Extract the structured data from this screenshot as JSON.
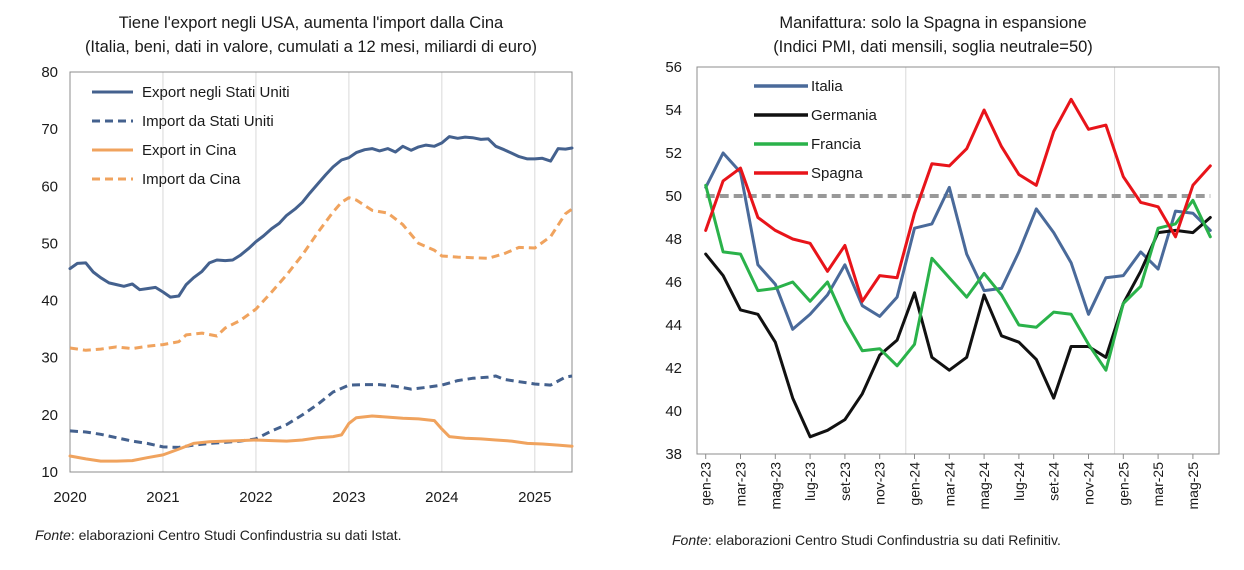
{
  "chart_data": [
    {
      "type": "line",
      "title": "Tiene l'export negli USA, aumenta l'import dalla Cina",
      "subtitle": "(Italia, beni, dati in valore, cumulati a 12 mesi, miliardi di euro)",
      "xlabel": "",
      "ylabel": "",
      "xlim": [
        2020,
        2025.4
      ],
      "ylim": [
        10,
        80
      ],
      "yticks": [
        10,
        20,
        30,
        40,
        50,
        60,
        70,
        80
      ],
      "xticks": [
        "2020",
        "2021",
        "2022",
        "2023",
        "2024",
        "2025"
      ],
      "grid": "vertical year gridlines",
      "legend": "top-left",
      "series": [
        {
          "name": "Export negli Stati Uniti",
          "color": "#44618e",
          "dash": "solid",
          "points": [
            [
              2020.0,
              45.6
            ],
            [
              2020.08,
              46.5
            ],
            [
              2020.17,
              46.6
            ],
            [
              2020.25,
              45.0
            ],
            [
              2020.33,
              44.0
            ],
            [
              2020.42,
              43.1
            ],
            [
              2020.5,
              42.8
            ],
            [
              2020.58,
              42.5
            ],
            [
              2020.67,
              42.9
            ],
            [
              2020.75,
              41.9
            ],
            [
              2020.83,
              42.1
            ],
            [
              2020.92,
              42.3
            ],
            [
              2021.0,
              41.5
            ],
            [
              2021.08,
              40.6
            ],
            [
              2021.17,
              40.8
            ],
            [
              2021.25,
              42.8
            ],
            [
              2021.33,
              44.0
            ],
            [
              2021.42,
              45.1
            ],
            [
              2021.5,
              46.6
            ],
            [
              2021.58,
              47.1
            ],
            [
              2021.67,
              47.0
            ],
            [
              2021.75,
              47.1
            ],
            [
              2021.83,
              47.9
            ],
            [
              2021.92,
              49.1
            ],
            [
              2022.0,
              50.3
            ],
            [
              2022.08,
              51.3
            ],
            [
              2022.17,
              52.6
            ],
            [
              2022.25,
              53.5
            ],
            [
              2022.33,
              54.9
            ],
            [
              2022.42,
              56.0
            ],
            [
              2022.5,
              57.2
            ],
            [
              2022.58,
              58.8
            ],
            [
              2022.67,
              60.5
            ],
            [
              2022.75,
              62.0
            ],
            [
              2022.83,
              63.4
            ],
            [
              2022.92,
              64.6
            ],
            [
              2023.0,
              65.0
            ],
            [
              2023.08,
              65.9
            ],
            [
              2023.17,
              66.4
            ],
            [
              2023.25,
              66.6
            ],
            [
              2023.33,
              66.2
            ],
            [
              2023.42,
              66.6
            ],
            [
              2023.5,
              66.0
            ],
            [
              2023.58,
              67.0
            ],
            [
              2023.67,
              66.3
            ],
            [
              2023.75,
              66.9
            ],
            [
              2023.83,
              67.2
            ],
            [
              2023.92,
              67.0
            ],
            [
              2024.0,
              67.6
            ],
            [
              2024.08,
              68.7
            ],
            [
              2024.17,
              68.4
            ],
            [
              2024.25,
              68.6
            ],
            [
              2024.33,
              68.5
            ],
            [
              2024.42,
              68.2
            ],
            [
              2024.5,
              68.3
            ],
            [
              2024.58,
              67.0
            ],
            [
              2024.67,
              66.4
            ],
            [
              2024.75,
              65.8
            ],
            [
              2024.83,
              65.2
            ],
            [
              2024.92,
              64.8
            ],
            [
              2025.0,
              64.8
            ],
            [
              2025.08,
              64.9
            ],
            [
              2025.17,
              64.4
            ],
            [
              2025.25,
              66.6
            ],
            [
              2025.33,
              66.5
            ],
            [
              2025.4,
              66.7
            ]
          ]
        },
        {
          "name": "Import da Stati Uniti",
          "color": "#44618e",
          "dash": "dashed",
          "points": [
            [
              2020.0,
              17.2
            ],
            [
              2020.17,
              17.0
            ],
            [
              2020.33,
              16.6
            ],
            [
              2020.5,
              16.0
            ],
            [
              2020.67,
              15.4
            ],
            [
              2020.83,
              15.0
            ],
            [
              2021.0,
              14.4
            ],
            [
              2021.17,
              14.3
            ],
            [
              2021.33,
              14.7
            ],
            [
              2021.5,
              15.0
            ],
            [
              2021.67,
              15.2
            ],
            [
              2021.83,
              15.4
            ],
            [
              2022.0,
              15.8
            ],
            [
              2022.17,
              17.2
            ],
            [
              2022.33,
              18.3
            ],
            [
              2022.5,
              20.0
            ],
            [
              2022.67,
              21.9
            ],
            [
              2022.83,
              24.0
            ],
            [
              2023.0,
              25.2
            ],
            [
              2023.17,
              25.3
            ],
            [
              2023.33,
              25.3
            ],
            [
              2023.5,
              25.0
            ],
            [
              2023.67,
              24.5
            ],
            [
              2023.83,
              24.8
            ],
            [
              2024.0,
              25.2
            ],
            [
              2024.17,
              26.0
            ],
            [
              2024.33,
              26.4
            ],
            [
              2024.5,
              26.6
            ],
            [
              2024.58,
              26.8
            ],
            [
              2024.67,
              26.2
            ],
            [
              2024.83,
              25.8
            ],
            [
              2025.0,
              25.4
            ],
            [
              2025.17,
              25.2
            ],
            [
              2025.33,
              26.6
            ],
            [
              2025.4,
              26.8
            ]
          ]
        },
        {
          "name": "Export in Cina",
          "color": "#f0a35e",
          "dash": "solid",
          "points": [
            [
              2020.0,
              12.8
            ],
            [
              2020.17,
              12.3
            ],
            [
              2020.33,
              11.9
            ],
            [
              2020.5,
              11.9
            ],
            [
              2020.67,
              12.0
            ],
            [
              2020.83,
              12.5
            ],
            [
              2021.0,
              13.0
            ],
            [
              2021.17,
              14.0
            ],
            [
              2021.33,
              15.0
            ],
            [
              2021.5,
              15.3
            ],
            [
              2021.67,
              15.4
            ],
            [
              2021.83,
              15.5
            ],
            [
              2022.0,
              15.6
            ],
            [
              2022.17,
              15.5
            ],
            [
              2022.33,
              15.4
            ],
            [
              2022.5,
              15.6
            ],
            [
              2022.67,
              16.0
            ],
            [
              2022.83,
              16.2
            ],
            [
              2022.92,
              16.5
            ],
            [
              2023.0,
              18.5
            ],
            [
              2023.08,
              19.5
            ],
            [
              2023.25,
              19.8
            ],
            [
              2023.42,
              19.6
            ],
            [
              2023.58,
              19.4
            ],
            [
              2023.75,
              19.3
            ],
            [
              2023.92,
              19.0
            ],
            [
              2024.0,
              17.5
            ],
            [
              2024.08,
              16.2
            ],
            [
              2024.25,
              15.9
            ],
            [
              2024.42,
              15.8
            ],
            [
              2024.58,
              15.6
            ],
            [
              2024.75,
              15.4
            ],
            [
              2024.92,
              15.0
            ],
            [
              2025.08,
              14.9
            ],
            [
              2025.25,
              14.7
            ],
            [
              2025.4,
              14.5
            ]
          ]
        },
        {
          "name": "Import da Cina",
          "color": "#f0a35e",
          "dash": "dashed",
          "points": [
            [
              2020.0,
              31.7
            ],
            [
              2020.17,
              31.3
            ],
            [
              2020.33,
              31.5
            ],
            [
              2020.5,
              31.9
            ],
            [
              2020.67,
              31.6
            ],
            [
              2020.83,
              32.0
            ],
            [
              2021.0,
              32.3
            ],
            [
              2021.17,
              32.8
            ],
            [
              2021.25,
              34.0
            ],
            [
              2021.42,
              34.3
            ],
            [
              2021.58,
              33.8
            ],
            [
              2021.67,
              35.2
            ],
            [
              2021.83,
              36.5
            ],
            [
              2022.0,
              38.5
            ],
            [
              2022.17,
              41.5
            ],
            [
              2022.33,
              44.5
            ],
            [
              2022.5,
              48.0
            ],
            [
              2022.67,
              52.0
            ],
            [
              2022.83,
              55.5
            ],
            [
              2022.92,
              57.2
            ],
            [
              2023.0,
              58.0
            ],
            [
              2023.08,
              57.6
            ],
            [
              2023.25,
              55.8
            ],
            [
              2023.42,
              55.3
            ],
            [
              2023.58,
              53.3
            ],
            [
              2023.75,
              50.0
            ],
            [
              2023.92,
              48.8
            ],
            [
              2024.0,
              47.8
            ],
            [
              2024.17,
              47.6
            ],
            [
              2024.33,
              47.5
            ],
            [
              2024.5,
              47.4
            ],
            [
              2024.67,
              48.2
            ],
            [
              2024.83,
              49.3
            ],
            [
              2025.0,
              49.2
            ],
            [
              2025.17,
              51.2
            ],
            [
              2025.33,
              55.2
            ],
            [
              2025.4,
              56.0
            ]
          ]
        }
      ],
      "source_prefix": "Fonte",
      "source_rest": ": elaborazioni Centro Studi Confindustria su dati Istat."
    },
    {
      "type": "line",
      "title": "Manifattura: solo la Spagna in espansione",
      "subtitle": "(Indici PMI, dati mensili, soglia neutrale=50)",
      "xlabel": "",
      "ylabel": "",
      "ylim": [
        38,
        56
      ],
      "yticks": [
        38,
        40,
        42,
        44,
        46,
        48,
        50,
        52,
        54,
        56
      ],
      "months": [
        "gen-23",
        "feb-23",
        "mar-23",
        "apr-23",
        "mag-23",
        "giu-23",
        "lug-23",
        "ago-23",
        "set-23",
        "ott-23",
        "nov-23",
        "dic-23",
        "gen-24",
        "feb-24",
        "mar-24",
        "apr-24",
        "mag-24",
        "giu-24",
        "lug-24",
        "ago-24",
        "set-24",
        "ott-24",
        "nov-24",
        "dic-24",
        "gen-25",
        "feb-25",
        "mar-25",
        "apr-25",
        "mag-25",
        "giu-25"
      ],
      "tick_labels": [
        "gen-23",
        "mar-23",
        "mag-23",
        "lug-23",
        "set-23",
        "nov-23",
        "gen-24",
        "mar-24",
        "mag-24",
        "lug-24",
        "set-24",
        "nov-24",
        "gen-25",
        "mar-25",
        "mag-25"
      ],
      "grid": "vertical gridlines at yearly boundaries",
      "legend": "top-left",
      "threshold": 50,
      "threshold_color": "#999999",
      "series": [
        {
          "name": "Italia",
          "color": "#4a6a9a",
          "values": [
            50.4,
            52.0,
            51.1,
            46.8,
            45.9,
            43.8,
            44.5,
            45.4,
            46.8,
            44.9,
            44.4,
            45.3,
            48.5,
            48.7,
            50.4,
            47.3,
            45.6,
            45.7,
            47.4,
            49.4,
            48.3,
            46.9,
            44.5,
            46.2,
            46.3,
            47.4,
            46.6,
            49.3,
            49.2,
            48.4
          ]
        },
        {
          "name": "Germania",
          "color": "#111111",
          "values": [
            47.3,
            46.3,
            44.7,
            44.5,
            43.2,
            40.6,
            38.8,
            39.1,
            39.6,
            40.8,
            42.6,
            43.3,
            45.5,
            42.5,
            41.9,
            42.5,
            45.4,
            43.5,
            43.2,
            42.4,
            40.6,
            43.0,
            43.0,
            42.5,
            45.0,
            46.5,
            48.3,
            48.4,
            48.3,
            49.0
          ]
        },
        {
          "name": "Francia",
          "color": "#2ab24a",
          "values": [
            50.5,
            47.4,
            47.3,
            45.6,
            45.7,
            46.0,
            45.1,
            46.0,
            44.2,
            42.8,
            42.9,
            42.1,
            43.1,
            47.1,
            46.2,
            45.3,
            46.4,
            45.4,
            44.0,
            43.9,
            44.6,
            44.5,
            43.1,
            41.9,
            45.0,
            45.8,
            48.5,
            48.7,
            49.8,
            48.1
          ]
        },
        {
          "name": "Spagna",
          "color": "#e8141a",
          "values": [
            48.4,
            50.7,
            51.3,
            49.0,
            48.4,
            48.0,
            47.8,
            46.5,
            47.7,
            45.1,
            46.3,
            46.2,
            49.2,
            51.5,
            51.4,
            52.2,
            54.0,
            52.3,
            51.0,
            50.5,
            53.0,
            54.5,
            53.1,
            53.3,
            50.9,
            49.7,
            49.5,
            48.1,
            50.5,
            51.4
          ]
        }
      ],
      "source_prefix": "Fonte",
      "source_rest": ": elaborazioni Centro Studi Confindustria su dati Refinitiv."
    }
  ]
}
